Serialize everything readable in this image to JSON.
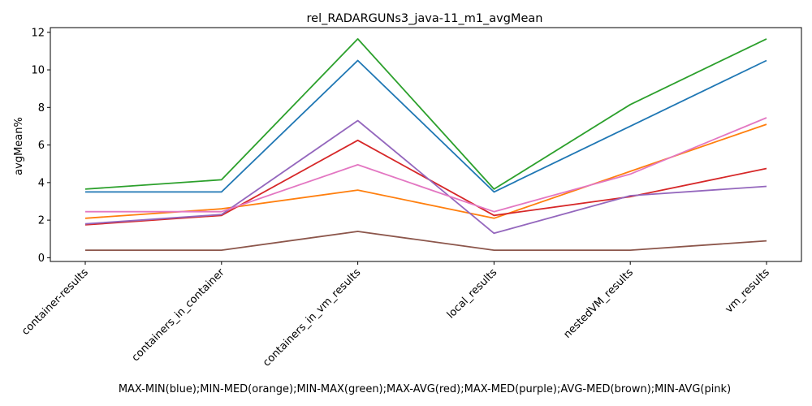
{
  "chart_data": {
    "type": "line",
    "title": "rel_RADARGUNs3_java-11_m1_avgMean",
    "xlabel": "MAX-MIN(blue);MIN-MED(orange);MIN-MAX(green);MAX-AVG(red);MAX-MED(purple);AVG-MED(brown);MIN-AVG(pink)",
    "ylabel": "avgMean%",
    "categories": [
      "container-results",
      "containers_in_container",
      "containers_in_vm_results",
      "local_results",
      "nestedVM_results",
      "vm_results"
    ],
    "ylim": [
      -0.2,
      12.25
    ],
    "yticks": [
      0,
      2,
      4,
      6,
      8,
      10,
      12
    ],
    "grid": false,
    "legend": "none",
    "series": [
      {
        "color": "#1f77b4",
        "values": [
          3.5,
          3.5,
          10.5,
          3.5,
          7.0,
          10.5
        ]
      },
      {
        "color": "#ff7f0e",
        "values": [
          2.1,
          2.6,
          3.6,
          2.1,
          4.6,
          7.1
        ]
      },
      {
        "color": "#2ca02c",
        "values": [
          3.65,
          4.15,
          11.65,
          3.65,
          8.15,
          11.65
        ]
      },
      {
        "color": "#d62728",
        "values": [
          1.75,
          2.25,
          6.25,
          2.25,
          3.25,
          4.75
        ]
      },
      {
        "color": "#9467bd",
        "values": [
          1.8,
          2.3,
          7.3,
          1.3,
          3.3,
          3.8
        ]
      },
      {
        "color": "#8c564b",
        "values": [
          0.4,
          0.4,
          1.4,
          0.4,
          0.4,
          0.9
        ]
      },
      {
        "color": "#e377c2",
        "values": [
          2.45,
          2.45,
          4.95,
          2.45,
          4.45,
          7.45
        ]
      }
    ]
  }
}
